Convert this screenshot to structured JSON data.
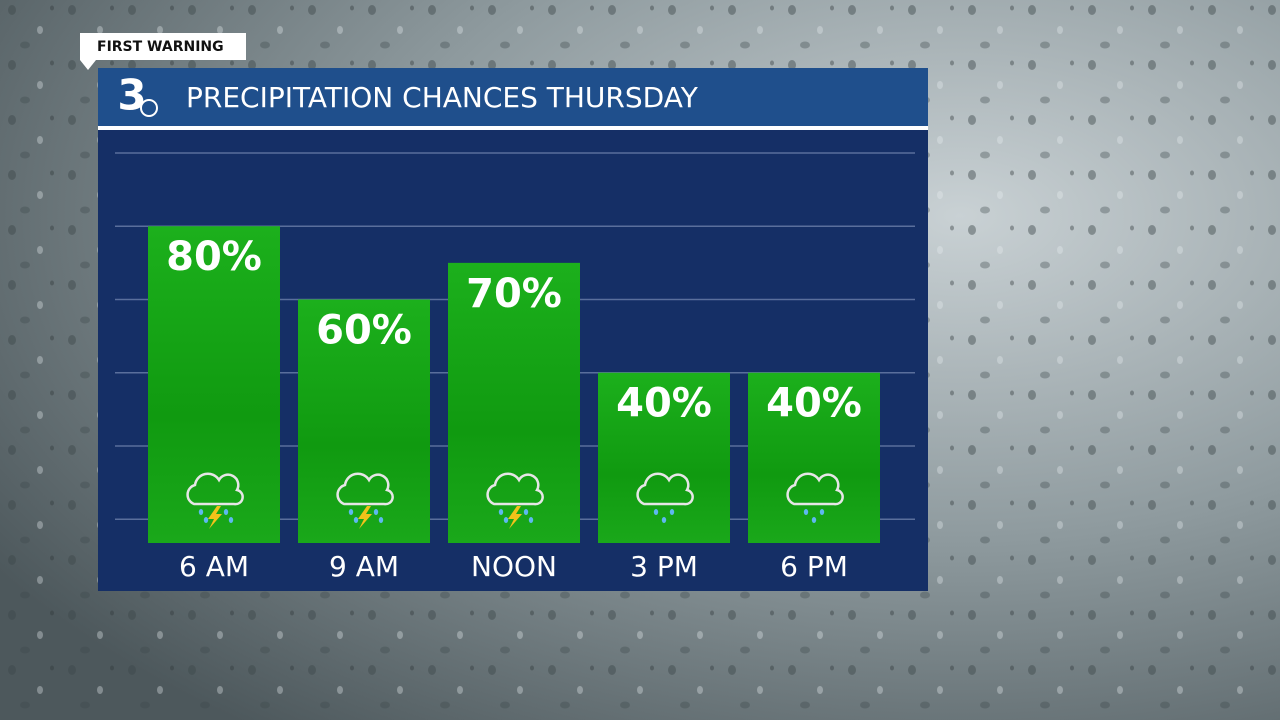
{
  "badge": "FIRST WARNING",
  "logo": "3",
  "chart_data": {
    "type": "bar",
    "title": "PRECIPITATION CHANCES THURSDAY",
    "categories": [
      "6 AM",
      "9 AM",
      "NOON",
      "3 PM",
      "6 PM"
    ],
    "values": [
      80,
      60,
      70,
      40,
      40
    ],
    "value_labels": [
      "80%",
      "60%",
      "70%",
      "40%",
      "40%"
    ],
    "icons": [
      "thunderstorm",
      "thunderstorm",
      "thunderstorm",
      "rain",
      "rain"
    ],
    "color": "#17a617",
    "ylim": [
      -6.5,
      100
    ],
    "yticks": [
      0,
      20,
      40,
      60,
      80,
      100
    ],
    "grid": true
  }
}
